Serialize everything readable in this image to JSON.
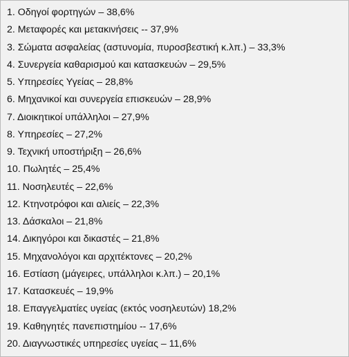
{
  "list": {
    "items": [
      "1. Οδηγοί φορτηγών – 38,6%",
      "2. Μεταφορές και μετακινήσεις -- 37,9%",
      "3. Σώματα ασφαλείας (αστυνομία, πυροσβεστική κ.λπ.) – 33,3%",
      "4. Συνεργεία καθαρισμού και κατασκευών – 29,5%",
      "5. Υπηρεσίες Υγείας – 28,8%",
      "6. Μηχανικοί και συνεργεία επισκευών – 28,9%",
      "7. Διοικητικοί υπάλληλοι – 27,9%",
      "8. Υπηρεσίες – 27,2%",
      "9. Τεχνική υποστήριξη – 26,6%",
      "10. Πωλητές – 25,4%",
      "11. Νοσηλευτές – 22,6%",
      "12. Κτηνοτρόφοι και αλιείς – 22,3%",
      "13. Δάσκαλοι – 21,8%",
      "14. Δικηγόροι και δικαστές – 21,8%",
      "15. Μηχανολόγοι και αρχιτέκτονες – 20,2%",
      "16. Εστίαση (μάγειρες, υπάλληλοι κ.λπ.) – 20,1%",
      "17. Κατασκευές – 19,9%",
      "18. Επαγγελματίες υγείας (εκτός νοσηλευτών) 18,2%",
      "19. Καθηγητές πανεπιστημίου -- 17,6%",
      "20. Διαγνωστικές υπηρεσίες υγείας – 11,6%"
    ]
  },
  "colors": {
    "background": "#f1f1f1",
    "border": "#b9b9b9",
    "text": "#111111"
  }
}
